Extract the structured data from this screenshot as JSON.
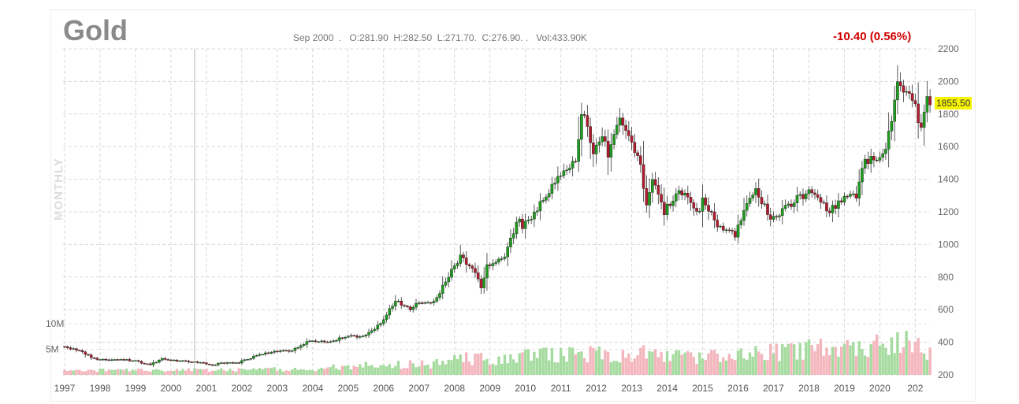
{
  "title": "Gold",
  "ohlc_readout": {
    "date": "Sep 2000",
    "text": "Sep 2000  .   O:281.90  H:282.50  L:271.70.  C:276.90. .   Vol:433.90K"
  },
  "change_text": "-10.40 (0.56%)",
  "period_label": "MONTHLY",
  "last_price_label": "1855.50",
  "colors": {
    "up": "#1e9c1e",
    "down": "#b01c2e",
    "volume_up": "#a6dba0",
    "volume_down": "#f4b6bd",
    "grid": "#d8d8d8",
    "badge": "#f7f400",
    "change": "#d10000"
  },
  "chart_data": {
    "type": "candlestick",
    "frequency": "monthly",
    "price_axis": {
      "ticks": [
        200,
        400,
        600,
        800,
        1000,
        1200,
        1400,
        1600,
        1800,
        2000,
        2200
      ],
      "position": "right"
    },
    "volume_axis": {
      "tick_labels": [
        "5M",
        "10M"
      ],
      "ticks": [
        5,
        10
      ],
      "unit": "M",
      "position": "left"
    },
    "x_axis": {
      "tick_labels": [
        "1997",
        "1998",
        "1999",
        "2000",
        "2001",
        "2002",
        "2003",
        "2004",
        "2005",
        "2006",
        "2007",
        "2008",
        "2009",
        "2010",
        "2011",
        "2012",
        "2013",
        "2014",
        "2015",
        "2016",
        "2017",
        "2018",
        "2019",
        "2020",
        "202"
      ]
    },
    "start": "1997-01",
    "end": "2021-06",
    "grid": true,
    "crosshair_date": "2000-09",
    "last_price": 1855.5,
    "price_anchors": [
      [
        "1997-01",
        370
      ],
      [
        "1997-06",
        345
      ],
      [
        "1997-12",
        290
      ],
      [
        "1998-06",
        296
      ],
      [
        "1998-12",
        288
      ],
      [
        "1999-06",
        262
      ],
      [
        "1999-10",
        300
      ],
      [
        "1999-12",
        288
      ],
      [
        "2000-06",
        285
      ],
      [
        "2000-09",
        277
      ],
      [
        "2001-03",
        262
      ],
      [
        "2001-06",
        270
      ],
      [
        "2001-12",
        277
      ],
      [
        "2002-06",
        318
      ],
      [
        "2002-12",
        345
      ],
      [
        "2003-06",
        346
      ],
      [
        "2003-12",
        415
      ],
      [
        "2004-06",
        396
      ],
      [
        "2004-12",
        438
      ],
      [
        "2005-06",
        435
      ],
      [
        "2005-12",
        515
      ],
      [
        "2006-05",
        655
      ],
      [
        "2006-10",
        600
      ],
      [
        "2006-12",
        632
      ],
      [
        "2007-06",
        650
      ],
      [
        "2007-12",
        835
      ],
      [
        "2008-03",
        930
      ],
      [
        "2008-08",
        830
      ],
      [
        "2008-10",
        730
      ],
      [
        "2008-12",
        870
      ],
      [
        "2009-06",
        925
      ],
      [
        "2009-11",
        1175
      ],
      [
        "2009-12",
        1100
      ],
      [
        "2010-06",
        1245
      ],
      [
        "2010-12",
        1410
      ],
      [
        "2011-06",
        1500
      ],
      [
        "2011-08",
        1825
      ],
      [
        "2011-12",
        1575
      ],
      [
        "2012-03",
        1665
      ],
      [
        "2012-05",
        1560
      ],
      [
        "2012-09",
        1775
      ],
      [
        "2012-12",
        1675
      ],
      [
        "2013-04",
        1475
      ],
      [
        "2013-06",
        1235
      ],
      [
        "2013-08",
        1395
      ],
      [
        "2013-12",
        1200
      ],
      [
        "2014-03",
        1285
      ],
      [
        "2014-06",
        1320
      ],
      [
        "2014-12",
        1200
      ],
      [
        "2015-01",
        1280
      ],
      [
        "2015-07",
        1095
      ],
      [
        "2015-12",
        1060
      ],
      [
        "2016-06",
        1320
      ],
      [
        "2016-07",
        1350
      ],
      [
        "2016-12",
        1150
      ],
      [
        "2017-06",
        1240
      ],
      [
        "2017-09",
        1280
      ],
      [
        "2017-12",
        1300
      ],
      [
        "2018-01",
        1340
      ],
      [
        "2018-08",
        1200
      ],
      [
        "2018-12",
        1280
      ],
      [
        "2019-05",
        1305
      ],
      [
        "2019-08",
        1520
      ],
      [
        "2019-12",
        1515
      ],
      [
        "2020-02",
        1585
      ],
      [
        "2020-03",
        1580
      ],
      [
        "2020-07",
        1975
      ],
      [
        "2020-08",
        1965
      ],
      [
        "2020-12",
        1895
      ],
      [
        "2021-03",
        1710
      ],
      [
        "2021-05",
        1905
      ],
      [
        "2021-06",
        1855
      ]
    ],
    "volume_anchors_millions": [
      [
        "1997-01",
        1.0
      ],
      [
        "2000-01",
        0.9
      ],
      [
        "2004-01",
        1.2
      ],
      [
        "2005-01",
        1.8
      ],
      [
        "2006-01",
        2.0
      ],
      [
        "2007-06",
        2.2
      ],
      [
        "2008-01",
        3.4
      ],
      [
        "2009-06",
        3.2
      ],
      [
        "2010-06",
        4.0
      ],
      [
        "2011-08",
        4.5
      ],
      [
        "2012-06",
        3.9
      ],
      [
        "2013-06",
        4.7
      ],
      [
        "2014-06",
        3.6
      ],
      [
        "2015-06",
        3.8
      ],
      [
        "2016-06",
        4.8
      ],
      [
        "2017-06",
        4.9
      ],
      [
        "2018-06",
        5.8
      ],
      [
        "2019-06",
        5.4
      ],
      [
        "2020-03",
        6.8
      ],
      [
        "2020-08",
        7.2
      ],
      [
        "2021-06",
        4.5
      ]
    ]
  }
}
